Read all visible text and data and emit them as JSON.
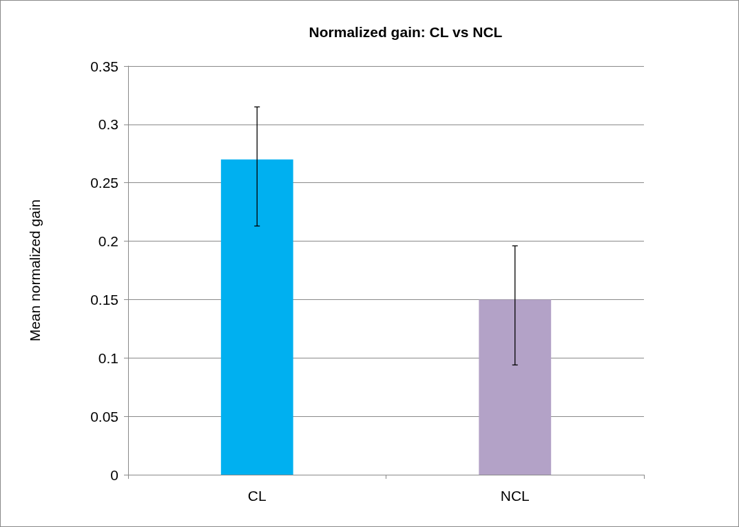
{
  "chart_data": {
    "type": "bar",
    "title": "Normalized gain: CL vs NCL",
    "ylabel": "Mean normalized gain",
    "categories": [
      "CL",
      "NCL"
    ],
    "values": [
      0.27,
      0.15
    ],
    "colors": [
      "#00b0f0",
      "#b3a2c7"
    ],
    "errors": [
      [
        0.213,
        0.315
      ],
      [
        0.094,
        0.196
      ]
    ],
    "ylim": [
      0,
      0.35
    ],
    "yticks": [
      0,
      0.05,
      0.1,
      0.15,
      0.2,
      0.25,
      0.3,
      0.35
    ],
    "grid": "y"
  }
}
